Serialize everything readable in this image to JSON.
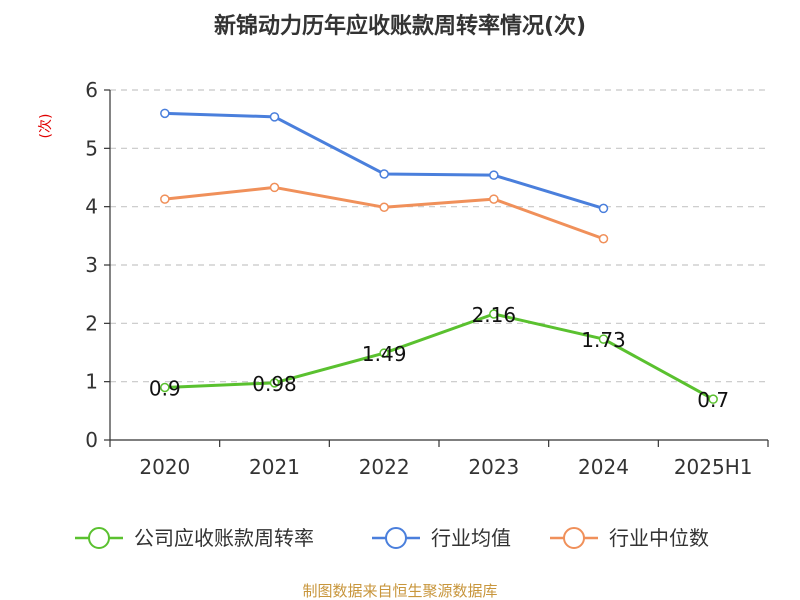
{
  "chart_data": {
    "type": "line",
    "title": "新锦动力历年应收账款周转率情况(次)",
    "ylabel": "(次)",
    "xlabel": "",
    "categories": [
      "2020",
      "2021",
      "2022",
      "2023",
      "2024",
      "2025H1"
    ],
    "y_ticks": [
      "0",
      "1",
      "2",
      "3",
      "4",
      "5",
      "6"
    ],
    "ylim": [
      0,
      6
    ],
    "grid": true,
    "legend_position": "bottom",
    "series": [
      {
        "name": "公司应收账款周转率",
        "color": "#5ac12f",
        "values": [
          0.9,
          0.98,
          1.49,
          2.16,
          1.73,
          0.7
        ],
        "labels": [
          "0.9",
          "0.98",
          "1.49",
          "2.16",
          "1.73",
          "0.7"
        ]
      },
      {
        "name": "行业均值",
        "color": "#4a7fdc",
        "values": [
          5.6,
          5.54,
          4.56,
          4.54,
          3.97,
          null
        ]
      },
      {
        "name": "行业中位数",
        "color": "#f0905a",
        "values": [
          4.13,
          4.33,
          3.99,
          4.13,
          3.45,
          null
        ]
      }
    ],
    "source": "制图数据来自恒生聚源数据库"
  }
}
